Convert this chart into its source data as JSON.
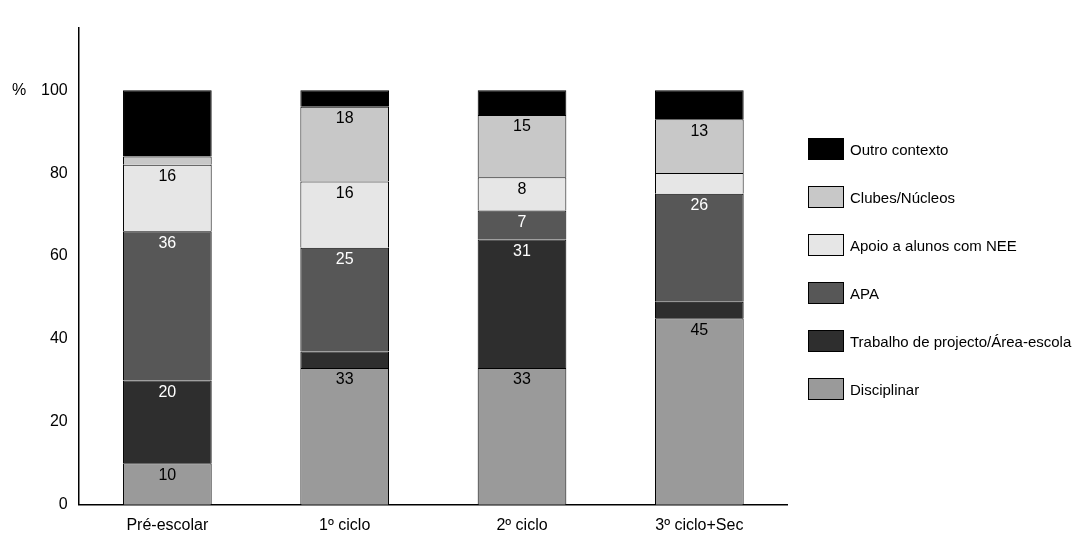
{
  "chart_data": {
    "type": "bar",
    "stacked": true,
    "ylabel": "%",
    "categories": [
      "Pré-escolar",
      "1º ciclo",
      "2º ciclo",
      "3º ciclo+Sec"
    ],
    "series": [
      {
        "name": "Disciplinar",
        "color": "#9a9a9a",
        "values": [
          10,
          33,
          33,
          45
        ],
        "value_labels": [
          "10",
          "33",
          "33",
          "45"
        ]
      },
      {
        "name": "Trabalho de projecto/Área-escola",
        "color": "#2e2e2e",
        "values": [
          20,
          4,
          31,
          4
        ],
        "value_labels": [
          "20",
          null,
          "31",
          null
        ]
      },
      {
        "name": "APA",
        "color": "#575757",
        "values": [
          36,
          25,
          7,
          26
        ],
        "value_labels": [
          "36",
          "25",
          "7",
          "26"
        ]
      },
      {
        "name": "Apoio a alunos com NEE",
        "color": "#e6e6e6",
        "values": [
          16,
          16,
          8,
          5
        ],
        "value_labels": [
          "16",
          "16",
          "8",
          null
        ]
      },
      {
        "name": "Clubes/Núcleos",
        "color": "#c8c8c8",
        "values": [
          2,
          18,
          15,
          13
        ],
        "value_labels": [
          null,
          "18",
          "15",
          "13"
        ]
      },
      {
        "name": "Outro contexto",
        "color": "#000000",
        "values": [
          16,
          4,
          6,
          7
        ],
        "value_labels": [
          null,
          null,
          null,
          null
        ]
      }
    ],
    "ylim": [
      0,
      115
    ],
    "yticks": [
      0,
      20,
      40,
      60,
      80,
      100
    ],
    "grid": false,
    "legend": "right"
  }
}
